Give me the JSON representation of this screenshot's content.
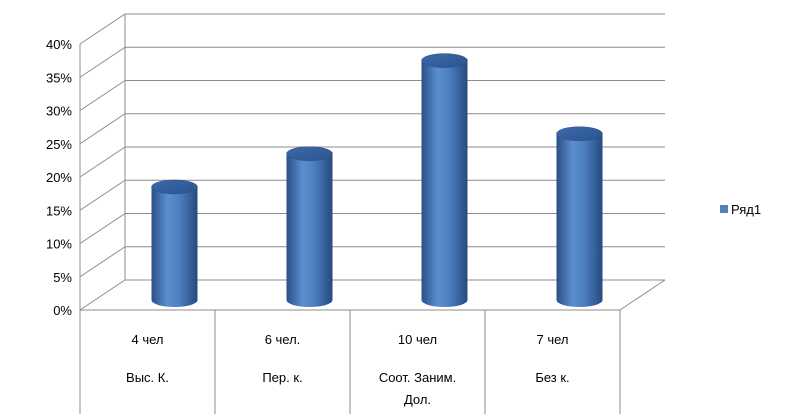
{
  "chart_data": {
    "type": "bar",
    "categories": [
      {
        "line1": "4 чел",
        "line2": "Выс. К.",
        "line3": ""
      },
      {
        "line1": "6 чел.",
        "line2": "Пер. к.",
        "line3": ""
      },
      {
        "line1": "10 чел",
        "line2": "Соот. Заним.",
        "line3": "Дол."
      },
      {
        "line1": "7 чел",
        "line2": "Без к.",
        "line3": ""
      }
    ],
    "series": [
      {
        "name": "Ряд1",
        "values": [
          17,
          22,
          36,
          25
        ],
        "color": "#4F81BD"
      }
    ],
    "y_ticks": [
      "0%",
      "5%",
      "10%",
      "15%",
      "20%",
      "25%",
      "30%",
      "35%",
      "40%"
    ],
    "ylim": [
      0,
      40
    ],
    "grid": true,
    "legend_position": "right",
    "title": "",
    "xlabel": "",
    "ylabel": "",
    "style": "3d-cylinder"
  }
}
